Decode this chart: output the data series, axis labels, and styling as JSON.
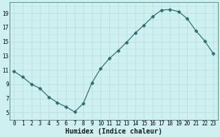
{
  "x": [
    0,
    1,
    2,
    3,
    4,
    5,
    6,
    7,
    8,
    9,
    10,
    11,
    12,
    13,
    14,
    15,
    16,
    17,
    18,
    19,
    20,
    21,
    22,
    23
  ],
  "y": [
    10.8,
    10.0,
    9.0,
    8.4,
    7.2,
    6.4,
    5.8,
    5.1,
    6.3,
    9.2,
    11.2,
    12.6,
    13.7,
    14.9,
    16.2,
    17.3,
    18.5,
    19.4,
    19.5,
    19.2,
    18.2,
    16.5,
    15.1,
    13.3
  ],
  "xlabel": "Humidex (Indice chaleur)",
  "line_color": "#2e6e6e",
  "marker": "D",
  "marker_size": 2.5,
  "bg_color": "#cff0f0",
  "grid_color": "#b8dede",
  "ylim": [
    4,
    20.5
  ],
  "xlim": [
    -0.5,
    23.5
  ],
  "yticks": [
    5,
    7,
    9,
    11,
    13,
    15,
    17,
    19
  ],
  "xticks": [
    0,
    1,
    2,
    3,
    4,
    5,
    6,
    7,
    8,
    9,
    10,
    11,
    12,
    13,
    14,
    15,
    16,
    17,
    18,
    19,
    20,
    21,
    22,
    23
  ],
  "tick_fontsize": 5.5,
  "xlabel_fontsize": 7
}
